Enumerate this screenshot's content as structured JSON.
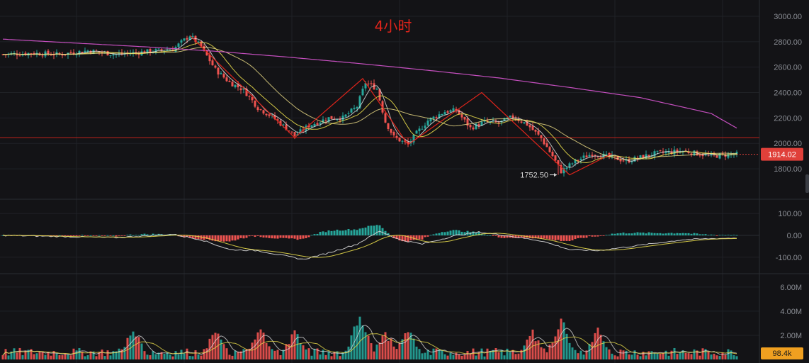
{
  "chart_data": {
    "type": "candlestick",
    "title": "4小时",
    "colors": {
      "up": "#26a69a",
      "down": "#ef5350",
      "ma_fast": "#e8e8e8",
      "ma_mid": "#e6d94a",
      "ma_slow": "#f3e28a",
      "ma_long": "#c54fbf",
      "pattern_lines": "#e0241b",
      "support_line": "#e0241b",
      "macd_line": "#d9d9d9",
      "signal_line": "#e6d94a",
      "price_tag_bg": "#e0403a",
      "volume_tag_bg": "#f0a020"
    },
    "price_panel": {
      "ylim": [
        1700,
        3050
      ],
      "ticks": [
        1800,
        2000,
        2200,
        2400,
        2600,
        2800,
        3000
      ],
      "tick_labels": [
        "1800.00",
        "2000.00",
        "2200.00",
        "2400.00",
        "2600.00",
        "2800.00",
        "3000.00"
      ],
      "support_level": 2045,
      "last_price_label": "1914.02",
      "last_price": 1914.02,
      "low_annotation": {
        "label": "1752.50",
        "value": 1752.5,
        "x": 196
      },
      "long_ma": [
        [
          0,
          2820
        ],
        [
          25,
          2790
        ],
        [
          50,
          2760
        ],
        [
          75,
          2725
        ],
        [
          100,
          2680
        ],
        [
          125,
          2630
        ],
        [
          150,
          2575
        ],
        [
          175,
          2515
        ],
        [
          200,
          2440
        ],
        [
          225,
          2360
        ],
        [
          250,
          2235
        ],
        [
          259,
          2120
        ]
      ],
      "key_points": [
        [
          0,
          2700
        ],
        [
          10,
          2710
        ],
        [
          20,
          2700
        ],
        [
          30,
          2730
        ],
        [
          40,
          2700
        ],
        [
          50,
          2720
        ],
        [
          60,
          2740
        ],
        [
          66,
          2850
        ],
        [
          70,
          2760
        ],
        [
          75,
          2580
        ],
        [
          80,
          2480
        ],
        [
          85,
          2420
        ],
        [
          90,
          2280
        ],
        [
          95,
          2210
        ],
        [
          100,
          2120
        ],
        [
          103,
          2060
        ],
        [
          108,
          2140
        ],
        [
          115,
          2200
        ],
        [
          120,
          2200
        ],
        [
          125,
          2290
        ],
        [
          128,
          2480
        ],
        [
          132,
          2430
        ],
        [
          135,
          2170
        ],
        [
          138,
          2050
        ],
        [
          143,
          1990
        ],
        [
          146,
          2080
        ],
        [
          150,
          2180
        ],
        [
          156,
          2250
        ],
        [
          160,
          2260
        ],
        [
          165,
          2120
        ],
        [
          170,
          2170
        ],
        [
          175,
          2160
        ],
        [
          180,
          2210
        ],
        [
          185,
          2150
        ],
        [
          190,
          2040
        ],
        [
          194,
          1900
        ],
        [
          197,
          1780
        ],
        [
          202,
          1860
        ],
        [
          208,
          1920
        ],
        [
          215,
          1890
        ],
        [
          220,
          1860
        ],
        [
          225,
          1890
        ],
        [
          230,
          1920
        ],
        [
          235,
          1930
        ],
        [
          240,
          1940
        ],
        [
          245,
          1920
        ],
        [
          250,
          1900
        ],
        [
          255,
          1910
        ],
        [
          259,
          1914
        ]
      ],
      "zigzag": [
        [
          66,
          2850
        ],
        [
          103,
          2045
        ],
        [
          127,
          2510
        ],
        [
          143,
          1990
        ],
        [
          169,
          2400
        ],
        [
          200,
          1752.5
        ],
        [
          215,
          1920
        ]
      ]
    },
    "macd_panel": {
      "ylim": [
        -130,
        130
      ],
      "ticks": [
        100,
        0,
        -100
      ],
      "tick_labels": [
        "100.00",
        "0.00",
        "-100.00"
      ],
      "key_points": [
        [
          0,
          0
        ],
        [
          20,
          -5
        ],
        [
          40,
          -10
        ],
        [
          60,
          5
        ],
        [
          70,
          -20
        ],
        [
          80,
          -65
        ],
        [
          90,
          -70
        ],
        [
          100,
          -95
        ],
        [
          106,
          -110
        ],
        [
          115,
          -80
        ],
        [
          125,
          -40
        ],
        [
          133,
          20
        ],
        [
          140,
          -20
        ],
        [
          148,
          -40
        ],
        [
          160,
          0
        ],
        [
          168,
          15
        ],
        [
          180,
          -5
        ],
        [
          190,
          -25
        ],
        [
          200,
          -65
        ],
        [
          210,
          -70
        ],
        [
          225,
          -45
        ],
        [
          240,
          -20
        ],
        [
          250,
          -15
        ],
        [
          259,
          -12
        ]
      ]
    },
    "volume_panel": {
      "ylim": [
        0,
        6.4
      ],
      "ticks": [
        2,
        4,
        6
      ],
      "tick_labels": [
        "2.00M",
        "4.00M",
        "6.00M"
      ],
      "last_volume_label": "98.4k",
      "peaks": [
        [
          46,
          2.8
        ],
        [
          75,
          2.6
        ],
        [
          91,
          2.9
        ],
        [
          103,
          2.7
        ],
        [
          126,
          4.2
        ],
        [
          135,
          2.6
        ],
        [
          143,
          2.7
        ],
        [
          187,
          2.6
        ],
        [
          197,
          3.8
        ],
        [
          210,
          2.7
        ]
      ]
    }
  }
}
